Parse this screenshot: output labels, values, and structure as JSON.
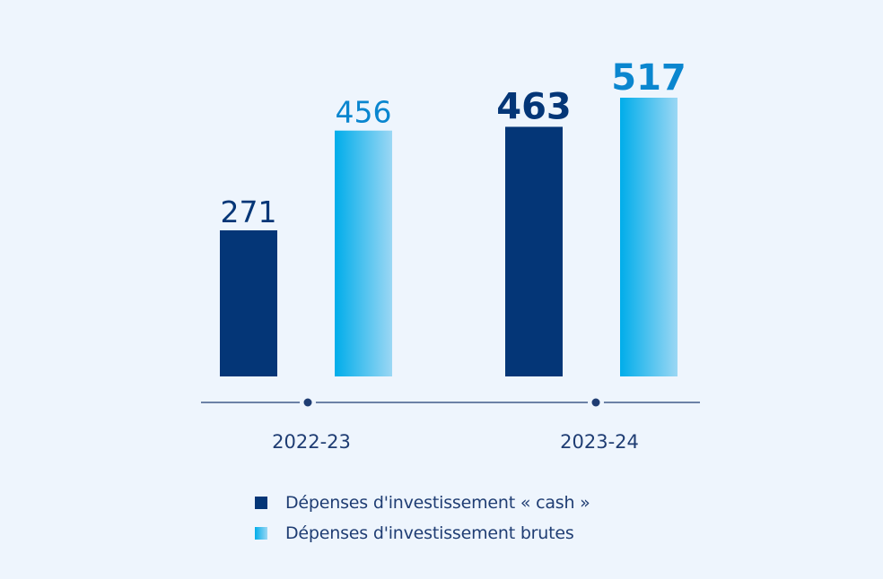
{
  "colors": {
    "background": "#eef5fd",
    "cash": "#043677",
    "brutes_start": "#00adea",
    "brutes_end": "#9bd7f4",
    "axis": "#1f3d73"
  },
  "chart_data": {
    "type": "bar",
    "categories": [
      "2022-23",
      "2023-24"
    ],
    "series": [
      {
        "name": "Dépenses d'investissement « cash »",
        "values": [
          271,
          463
        ]
      },
      {
        "name": "Dépenses d'investissement brutes",
        "values": [
          456,
          517
        ]
      }
    ],
    "value_labels": [
      [
        "271",
        "463"
      ],
      [
        "456",
        "517"
      ]
    ],
    "ylim": [
      0,
      517
    ],
    "grid": false,
    "legend_position": "bottom"
  },
  "legend": {
    "items": [
      {
        "label": "Dépenses d'investissement « cash »"
      },
      {
        "label": "Dépenses d'investissement brutes"
      }
    ]
  }
}
